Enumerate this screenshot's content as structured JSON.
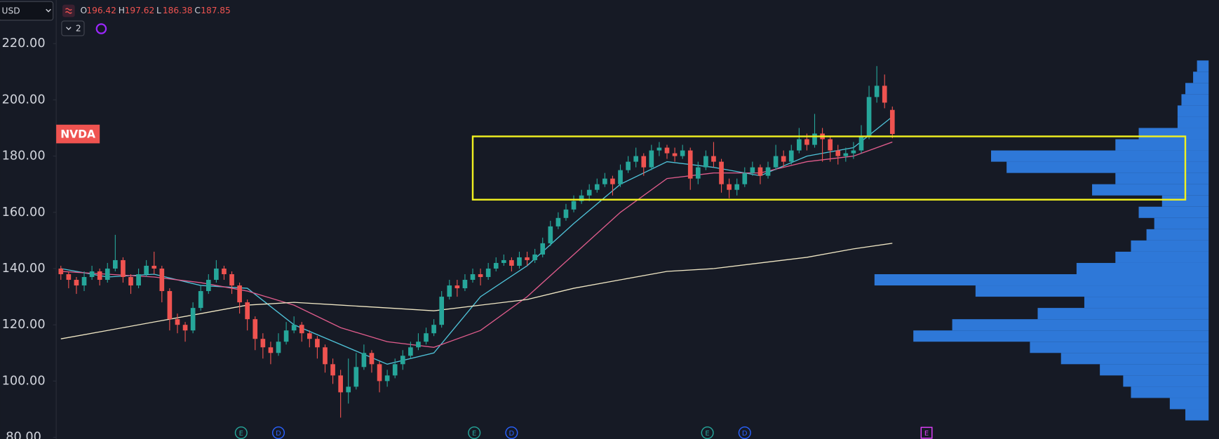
{
  "chart_data": {
    "type": "candlestick",
    "currency": "USD",
    "symbol": "NVDA",
    "ohlc_labels": [
      "O",
      "H",
      "L",
      "C"
    ],
    "indicator_count": 2,
    "up_color": "#26a69a",
    "down_color": "#ef5350",
    "xlim": [
      -0.6,
      147.7
    ],
    "ylim": [
      79.4,
      235.5
    ],
    "yticks": [
      {
        "value": 80,
        "label": "80.00"
      },
      {
        "value": 100,
        "label": "100.00"
      },
      {
        "value": 120,
        "label": "120.00"
      },
      {
        "value": 140,
        "label": "140.00"
      },
      {
        "value": 160,
        "label": "160.00"
      },
      {
        "value": 180,
        "label": "180.00"
      },
      {
        "value": 200,
        "label": "200.00"
      },
      {
        "value": 220,
        "label": "220.00"
      }
    ],
    "open": [
      140,
      138,
      136,
      134,
      137,
      139,
      136,
      140,
      143,
      137,
      134,
      138,
      141,
      140,
      132,
      122,
      120,
      118,
      126,
      132,
      136,
      140,
      138,
      134,
      128,
      122,
      115,
      112,
      110,
      114,
      118,
      120,
      117,
      115,
      112,
      106,
      102,
      96,
      98,
      105,
      110,
      106,
      100,
      102,
      106,
      109,
      112,
      114,
      117,
      120,
      130,
      134,
      133,
      136,
      138,
      137,
      140,
      142,
      143,
      141,
      144,
      143,
      145,
      149,
      155,
      158,
      161,
      164,
      166,
      168,
      170,
      172,
      170,
      175,
      178,
      180,
      176,
      182,
      183,
      181,
      180,
      182,
      172,
      176,
      180,
      178,
      170,
      168,
      170,
      174,
      176,
      173,
      176,
      180,
      178,
      182,
      186,
      184,
      188,
      186,
      182,
      180,
      181,
      182,
      187,
      201,
      205,
      196.42
    ],
    "high": [
      141,
      139,
      137,
      139,
      141,
      140,
      142,
      152,
      144,
      138,
      140,
      143,
      146,
      141,
      133,
      124,
      121,
      128,
      134,
      138,
      143,
      141,
      139,
      135,
      129,
      123,
      117,
      114,
      117,
      121,
      123,
      121,
      118,
      116,
      113,
      108,
      104,
      108,
      110,
      113,
      111,
      107,
      104,
      108,
      111,
      114,
      117,
      119,
      122,
      132,
      136,
      136,
      138,
      140,
      140,
      142,
      144,
      145,
      144,
      146,
      146,
      147,
      151,
      157,
      160,
      163,
      166,
      168,
      170,
      172,
      174,
      173,
      177,
      180,
      183,
      181,
      184,
      185,
      184,
      183,
      184,
      183,
      178,
      182,
      185,
      179,
      172,
      172,
      176,
      178,
      177,
      178,
      184,
      182,
      184,
      190,
      188,
      195,
      190,
      187,
      184,
      183,
      185,
      191,
      205,
      212,
      209,
      197.62
    ],
    "low": [
      136,
      133,
      131,
      132,
      136,
      134,
      135,
      139,
      135,
      131,
      133,
      137,
      138,
      128,
      118,
      117,
      114,
      117,
      125,
      131,
      135,
      136,
      131,
      124,
      118,
      111,
      108,
      106,
      109,
      113,
      117,
      114,
      112,
      108,
      103,
      99,
      87,
      92,
      97,
      104,
      103,
      96,
      98,
      101,
      104,
      108,
      111,
      113,
      116,
      119,
      129,
      130,
      132,
      135,
      134,
      136,
      139,
      141,
      139,
      140,
      141,
      142,
      144,
      148,
      154,
      157,
      160,
      163,
      164,
      167,
      169,
      166,
      169,
      174,
      176,
      173,
      175,
      180,
      179,
      178,
      179,
      168,
      170,
      175,
      176,
      167,
      165,
      166,
      169,
      173,
      170,
      172,
      175,
      176,
      177,
      181,
      182,
      183,
      178,
      178,
      177,
      178,
      179,
      181,
      186,
      199,
      197,
      186.38
    ],
    "close": [
      138,
      136,
      134,
      137,
      139,
      136,
      140,
      143,
      137,
      134,
      138,
      141,
      140,
      132,
      122,
      120,
      118,
      126,
      132,
      136,
      140,
      138,
      134,
      128,
      122,
      115,
      112,
      110,
      114,
      118,
      120,
      117,
      115,
      112,
      106,
      102,
      96,
      98,
      105,
      110,
      106,
      100,
      102,
      106,
      109,
      112,
      114,
      117,
      120,
      130,
      134,
      133,
      136,
      138,
      137,
      140,
      142,
      143,
      141,
      144,
      143,
      145,
      149,
      155,
      158,
      161,
      164,
      166,
      168,
      170,
      172,
      170,
      175,
      178,
      180,
      176,
      182,
      183,
      181,
      180,
      182,
      172,
      176,
      180,
      178,
      170,
      168,
      170,
      174,
      176,
      173,
      176,
      180,
      178,
      182,
      186,
      184,
      188,
      186,
      182,
      180,
      181,
      182,
      187,
      201,
      205,
      199,
      187.85
    ],
    "moving_averages": [
      {
        "color": "#4fc3d9",
        "x": [
          0,
          6,
          12,
          18,
          24,
          30,
          36,
          42,
          48,
          54,
          60,
          66,
          72,
          78,
          84,
          90,
          96,
          102,
          107
        ],
        "values": [
          140,
          137,
          138,
          134,
          133,
          120,
          113,
          106,
          110,
          130,
          141,
          156,
          170,
          178,
          176,
          173,
          180,
          183,
          194
        ]
      },
      {
        "color": "#e05c8c",
        "x": [
          0,
          6,
          12,
          18,
          24,
          30,
          36,
          42,
          48,
          54,
          60,
          66,
          72,
          78,
          84,
          90,
          96,
          102,
          107
        ],
        "values": [
          139,
          138,
          137,
          135,
          132,
          127,
          119,
          114,
          112,
          118,
          130,
          145,
          160,
          172,
          174,
          174,
          178,
          180,
          185
        ]
      },
      {
        "color": "#efe6c4",
        "x": [
          0,
          6,
          12,
          18,
          24,
          30,
          36,
          42,
          48,
          54,
          60,
          66,
          72,
          78,
          84,
          90,
          96,
          102,
          107
        ],
        "values": [
          115,
          118,
          121,
          124,
          127,
          128,
          127,
          126,
          125,
          127,
          129,
          133,
          136,
          139,
          140,
          142,
          144,
          147,
          149
        ]
      }
    ],
    "volume_profile": {
      "color": "#2f7de1",
      "prices": [
        88,
        92,
        96,
        100,
        104,
        108,
        112,
        116,
        120,
        124,
        128,
        132,
        136,
        140,
        144,
        148,
        152,
        156,
        160,
        164,
        168,
        172,
        176,
        180,
        184,
        188,
        192,
        196,
        200,
        204,
        208,
        212
      ],
      "values": [
        30,
        50,
        100,
        110,
        140,
        190,
        230,
        380,
        330,
        220,
        160,
        300,
        430,
        170,
        120,
        100,
        80,
        70,
        90,
        60,
        150,
        120,
        260,
        280,
        120,
        90,
        40,
        40,
        35,
        30,
        20,
        15
      ]
    },
    "highlight": {
      "color": "#f0f020",
      "from": 53,
      "to": 144.7,
      "top": 187,
      "bottom": 164.5
    },
    "events": [
      {
        "label": "E",
        "x": 23.2,
        "color": "#26a69a"
      },
      {
        "label": "D",
        "x": 28,
        "color": "#2962ff"
      },
      {
        "label": "E",
        "x": 53.2,
        "color": "#26a69a"
      },
      {
        "label": "D",
        "x": 58,
        "color": "#2962ff"
      },
      {
        "label": "E",
        "x": 83.2,
        "color": "#26a69a"
      },
      {
        "label": "D",
        "x": 88,
        "color": "#2962ff"
      },
      {
        "label": "E",
        "x": 111.4,
        "color": "#e040fb"
      }
    ]
  }
}
